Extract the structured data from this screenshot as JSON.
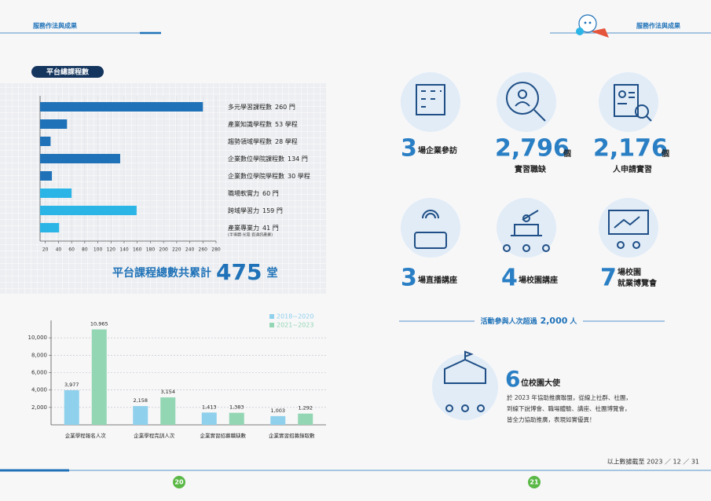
{
  "left_page": {
    "header": "服務作法與成果",
    "section_title": "平台總課程數",
    "total": {
      "prefix": "平台課程總數共累計",
      "number": "475",
      "unit": "堂"
    },
    "page_number": "20"
  },
  "chart_data": [
    {
      "type": "hbar",
      "categories": [
        "多元學習課程數",
        "產業知識學程數",
        "趨勢領域學程數",
        "企業數位學院課程數",
        "企業數位學院學程數",
        "職場軟實力",
        "跨域學習力",
        "產業專業力"
      ],
      "values": [
        260,
        53,
        28,
        134,
        30,
        60,
        159,
        41
      ],
      "value_labels": [
        "260 門",
        "53 學程",
        "28 學程",
        "134 門",
        "30 學程",
        "60 門",
        "159 門",
        "41 門"
      ],
      "colors": [
        "#1f72b8",
        "#1f72b8",
        "#1f72b8",
        "#1f72b8",
        "#1f72b8",
        "#2bb5e6",
        "#2bb5e6",
        "#2bb5e6"
      ],
      "note": "(半導體·光電·資通訊產業)",
      "xlim": [
        12,
        280
      ],
      "xticks": [
        20,
        40,
        60,
        80,
        100,
        120,
        140,
        160,
        180,
        200,
        220,
        240,
        260,
        280
      ],
      "grid": true
    },
    {
      "type": "bar",
      "categories": [
        "企業學程報名人次",
        "企業學程完訓人次",
        "企業實習招募職缺數",
        "企業實習招募錄取數"
      ],
      "series": [
        {
          "name": "2018~2020",
          "color": "#8fd0ec",
          "values": [
            3977,
            2158,
            1413,
            1003
          ],
          "value_labels": [
            "3,977",
            "2,158",
            "1,413",
            "1,003"
          ]
        },
        {
          "name": "2021~2023",
          "color": "#93d6b4",
          "values": [
            10965,
            3154,
            1383,
            1292
          ],
          "value_labels": [
            "10,965",
            "3,154",
            "1,383",
            "1,292"
          ]
        }
      ],
      "ylim": [
        0,
        12000
      ],
      "yticks": [
        {
          "value": 2000,
          "label": "2,000"
        },
        {
          "value": 4000,
          "label": "4,000"
        },
        {
          "value": 6000,
          "label": "6,000"
        },
        {
          "value": 8000,
          "label": "8,000"
        },
        {
          "value": 10000,
          "label": "10,000"
        }
      ],
      "grid": true,
      "legend": "top-right"
    }
  ],
  "right_page": {
    "header": "服務作法與成果",
    "stats": [
      {
        "number": "3",
        "label": "場企業參訪"
      },
      {
        "number": "2,796",
        "unit": "個",
        "label": "實習職缺"
      },
      {
        "number": "2,176",
        "unit": "個",
        "label": "人申請實習"
      },
      {
        "number": "3",
        "label": "場直播講座"
      },
      {
        "number": "4",
        "label": "場校園講座"
      },
      {
        "number": "7",
        "label_lines": [
          "場校園",
          "就業博覽會"
        ]
      }
    ],
    "participation": {
      "prefix": "活動參與人次超過",
      "number": "2,000",
      "unit": "人"
    },
    "ambassador": {
      "number": "6",
      "label": "位校園大使",
      "lines": [
        "於 2023 年協助推廣聯盟，從線上社群、社團，",
        "到線下說博會、職場體驗、講座、社團博覽會，",
        "皆全力協助推廣，表現如實優異！"
      ]
    },
    "footnote": "以上數據截至 2023 ／ 12 ／ 31",
    "page_number": "21"
  }
}
